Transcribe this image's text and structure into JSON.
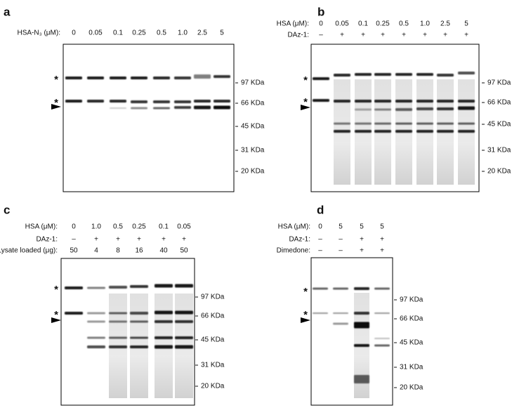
{
  "panels": [
    {
      "letter": "a",
      "rows": [
        {
          "label": "HSA-N₃ (μM):",
          "values": [
            "0",
            "0.05",
            "0.1",
            "0.25",
            "0.5",
            "1.0",
            "2.5",
            "5"
          ]
        }
      ],
      "markers": [
        "97 KDa",
        "66 KDa",
        "45 KDa",
        "31 KDa",
        "20 KDa"
      ],
      "asterisks": [
        "*",
        "*"
      ]
    },
    {
      "letter": "b",
      "rows": [
        {
          "label": "HSA (μM):",
          "values": [
            "0",
            "0.05",
            "0.1",
            "0.25",
            "0.5",
            "1.0",
            "2.5",
            "5"
          ]
        },
        {
          "label": "DAz-1:",
          "values": [
            "–",
            "+",
            "+",
            "+",
            "+",
            "+",
            "+",
            "+"
          ]
        }
      ],
      "markers": [
        "97 KDa",
        "66 KDa",
        "45 KDa",
        "31 KDa",
        "20 KDa"
      ],
      "asterisks": [
        "*",
        "*"
      ]
    },
    {
      "letter": "c",
      "rows": [
        {
          "label": "HSA (μM):",
          "values": [
            "0",
            "1.0",
            "0.5",
            "0.25",
            "0.1",
            "0.05"
          ]
        },
        {
          "label": "DAz-1:",
          "values": [
            "–",
            "+",
            "+",
            "+",
            "+",
            "+"
          ]
        },
        {
          "label": "Lysate loaded (μg):",
          "values": [
            "50",
            "4",
            "8",
            "16",
            "40",
            "50"
          ]
        }
      ],
      "markers": [
        "97 KDa",
        "66 KDa",
        "45 KDa",
        "31 KDa",
        "20 KDa"
      ],
      "asterisks": [
        "*",
        "*"
      ]
    },
    {
      "letter": "d",
      "rows": [
        {
          "label": "HSA (μM):",
          "values": [
            "0",
            "5",
            "5",
            "5"
          ]
        },
        {
          "label": "DAz-1:",
          "values": [
            "–",
            "–",
            "+",
            "+"
          ]
        },
        {
          "label": "Dimedone:",
          "values": [
            "–",
            "–",
            "+",
            "+"
          ]
        }
      ],
      "markers": [
        "97 KDa",
        "66 KDa",
        "45 KDa",
        "31 KDa",
        "20 KDa"
      ],
      "asterisks": [
        "*",
        "*"
      ]
    }
  ]
}
